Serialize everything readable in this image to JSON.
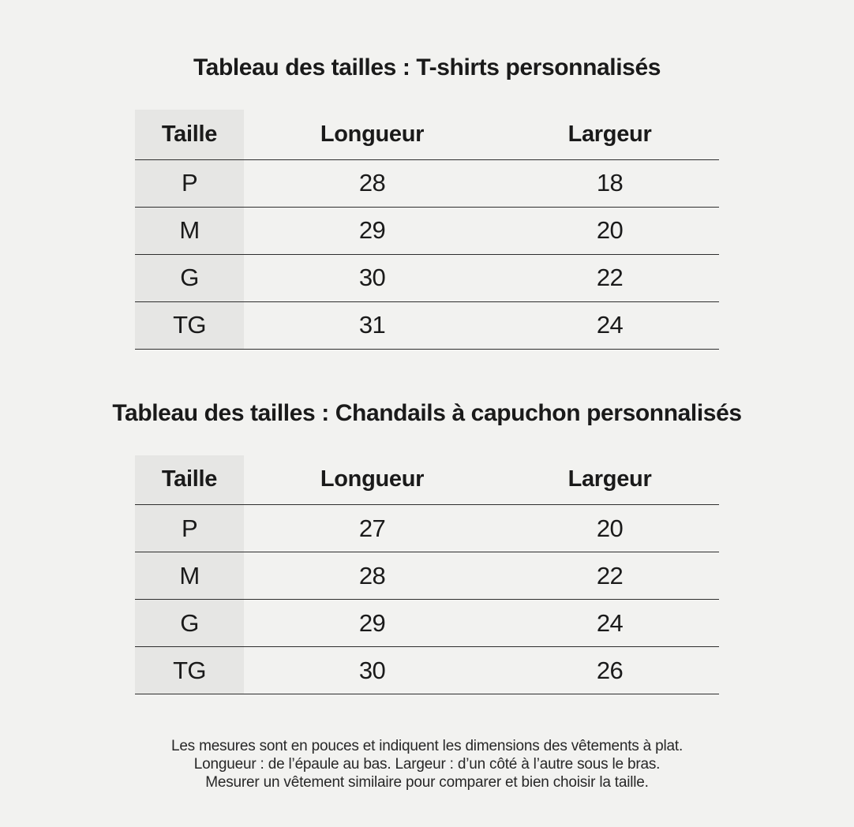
{
  "page": {
    "background_color": "#f2f2f0",
    "size_column_fill_color": "#e6e6e4",
    "rule_color": "#2e2e2e",
    "text_color": "#1a1a1a"
  },
  "tables": [
    {
      "title": "Tableau des tailles : T-shirts personnalisés",
      "columns": [
        "Taille",
        "Longueur",
        "Largeur"
      ],
      "rows": [
        {
          "size": "P",
          "longueur": "28",
          "largeur": "18"
        },
        {
          "size": "M",
          "longueur": "29",
          "largeur": "20"
        },
        {
          "size": "G",
          "longueur": "30",
          "largeur": "22"
        },
        {
          "size": "TG",
          "longueur": "31",
          "largeur": "24"
        }
      ]
    },
    {
      "title": "Tableau des tailles : Chandails à capuchon personnalisés",
      "columns": [
        "Taille",
        "Longueur",
        "Largeur"
      ],
      "rows": [
        {
          "size": "P",
          "longueur": "27",
          "largeur": "20"
        },
        {
          "size": "M",
          "longueur": "28",
          "largeur": "22"
        },
        {
          "size": "G",
          "longueur": "29",
          "largeur": "24"
        },
        {
          "size": "TG",
          "longueur": "30",
          "largeur": "26"
        }
      ]
    }
  ],
  "footnote": {
    "line1": "Les mesures sont en pouces et indiquent les dimensions des vêtements à plat.",
    "line2": "Longueur : de l’épaule au bas. Largeur : d’un côté à l’autre sous le bras.",
    "line3": "Mesurer un vêtement similaire pour comparer et bien choisir la taille."
  }
}
